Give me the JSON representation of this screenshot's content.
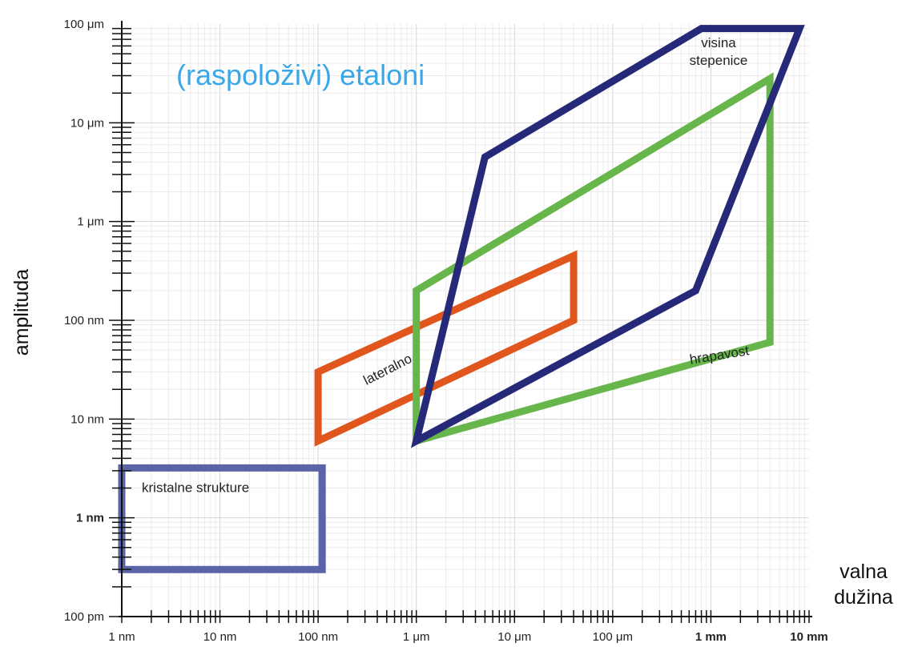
{
  "chart_data": {
    "type": "area",
    "title": "(raspoloživi) etaloni",
    "title_color": "#3aa8e8",
    "x_axis": {
      "label_lines": [
        "valna",
        "dužina"
      ],
      "scale": "log",
      "range_m": [
        1e-09,
        0.01
      ],
      "tick_labels": [
        {
          "value_m": 1e-09,
          "label": "1 nm",
          "bold": false
        },
        {
          "value_m": 1e-08,
          "label": "10 nm",
          "bold": false
        },
        {
          "value_m": 1e-07,
          "label": "100 nm",
          "bold": false
        },
        {
          "value_m": 1e-06,
          "label": "1 μm",
          "bold": false
        },
        {
          "value_m": 1e-05,
          "label": "10 μm",
          "bold": false
        },
        {
          "value_m": 0.0001,
          "label": "100 μm",
          "bold": false
        },
        {
          "value_m": 0.001,
          "label": "1 mm",
          "bold": true
        },
        {
          "value_m": 0.01,
          "label": "10 mm",
          "bold": true
        }
      ]
    },
    "y_axis": {
      "label": "amplituda",
      "scale": "log",
      "range_m": [
        1e-10,
        0.0001
      ],
      "tick_labels": [
        {
          "value_m": 1e-10,
          "label": "100 pm",
          "bold": false
        },
        {
          "value_m": 1e-09,
          "label": "1 nm",
          "bold": true
        },
        {
          "value_m": 1e-08,
          "label": "10 nm",
          "bold": false
        },
        {
          "value_m": 1e-07,
          "label": "100 nm",
          "bold": false
        },
        {
          "value_m": 1e-06,
          "label": "1 μm",
          "bold": false
        },
        {
          "value_m": 1e-05,
          "label": "10 μm",
          "bold": false
        },
        {
          "value_m": 0.0001,
          "label": "100 μm",
          "bold": false
        }
      ]
    },
    "grid": true,
    "series": [
      {
        "name": "kristalne strukture",
        "color": "#5a64a6",
        "points_m": [
          [
            1e-09,
            3.2e-09
          ],
          [
            1.1e-07,
            3.2e-09
          ],
          [
            1.1e-07,
            3e-10
          ],
          [
            1e-09,
            3e-10
          ]
        ]
      },
      {
        "name": "lateralno",
        "color": "#e0561c",
        "points_m": [
          [
            1e-07,
            6e-09
          ],
          [
            1e-07,
            3e-08
          ],
          [
            4e-05,
            4.5e-07
          ],
          [
            4e-05,
            1e-07
          ]
        ]
      },
      {
        "name": "hrapavost",
        "color": "#66b64b",
        "points_m": [
          [
            1e-06,
            6e-09
          ],
          [
            1e-06,
            2e-07
          ],
          [
            0.004,
            2.8e-05
          ],
          [
            0.004,
            6e-08
          ]
        ]
      },
      {
        "name": "visina stepenice",
        "name_lines": [
          "visina",
          "stepenice"
        ],
        "color": "#262878",
        "points_m": [
          [
            1e-06,
            6e-09
          ],
          [
            5e-06,
            4.5e-06
          ],
          [
            0.0008,
            9e-05
          ],
          [
            0.008,
            9e-05
          ],
          [
            0.0007,
            2e-07
          ]
        ]
      }
    ]
  }
}
